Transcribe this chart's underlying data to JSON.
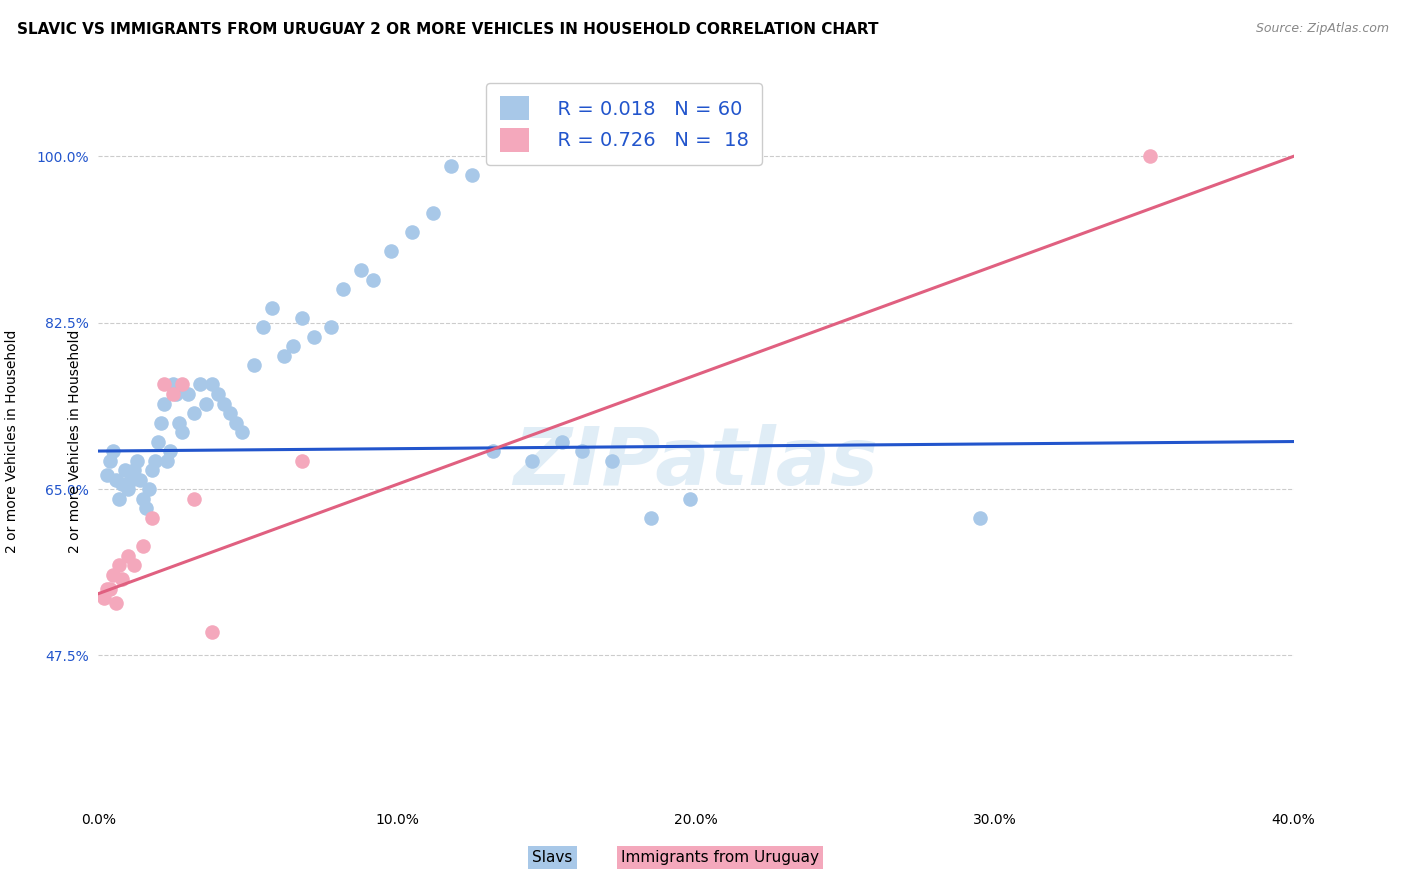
{
  "title": "SLAVIC VS IMMIGRANTS FROM URUGUAY 2 OR MORE VEHICLES IN HOUSEHOLD CORRELATION CHART",
  "source": "Source: ZipAtlas.com",
  "ylabel_label": "2 or more Vehicles in Household",
  "xlabel_label_slavs": "Slavs",
  "xlabel_label_immigrants": "Immigrants from Uruguay",
  "xmin": 0.0,
  "xmax": 0.4,
  "ymin": 0.32,
  "ymax": 1.08,
  "legend_r1": "R = 0.018",
  "legend_n1": "N = 60",
  "legend_r2": "R = 0.726",
  "legend_n2": "N =  18",
  "slavs_color": "#a8c8e8",
  "immigrants_color": "#f4a8bc",
  "slavs_line_color": "#2255cc",
  "immigrants_line_color": "#e06080",
  "background_color": "#ffffff",
  "grid_color": "#cccccc",
  "title_fontsize": 11,
  "axis_label_color_right": "#2255cc",
  "watermark": "ZIPatlas",
  "slavs_x": [
    0.003,
    0.004,
    0.005,
    0.006,
    0.007,
    0.008,
    0.009,
    0.01,
    0.011,
    0.012,
    0.013,
    0.014,
    0.015,
    0.016,
    0.017,
    0.018,
    0.019,
    0.02,
    0.021,
    0.022,
    0.023,
    0.024,
    0.025,
    0.026,
    0.027,
    0.028,
    0.03,
    0.032,
    0.034,
    0.036,
    0.038,
    0.04,
    0.042,
    0.044,
    0.046,
    0.048,
    0.052,
    0.055,
    0.058,
    0.062,
    0.065,
    0.068,
    0.072,
    0.078,
    0.082,
    0.088,
    0.092,
    0.098,
    0.105,
    0.112,
    0.118,
    0.125,
    0.132,
    0.145,
    0.155,
    0.162,
    0.172,
    0.185,
    0.198,
    0.295
  ],
  "slavs_y": [
    0.665,
    0.68,
    0.69,
    0.66,
    0.64,
    0.655,
    0.67,
    0.65,
    0.66,
    0.67,
    0.68,
    0.66,
    0.64,
    0.63,
    0.65,
    0.67,
    0.68,
    0.7,
    0.72,
    0.74,
    0.68,
    0.69,
    0.76,
    0.75,
    0.72,
    0.71,
    0.75,
    0.73,
    0.76,
    0.74,
    0.76,
    0.75,
    0.74,
    0.73,
    0.72,
    0.71,
    0.78,
    0.82,
    0.84,
    0.79,
    0.8,
    0.83,
    0.81,
    0.82,
    0.86,
    0.88,
    0.87,
    0.9,
    0.92,
    0.94,
    0.99,
    0.98,
    0.69,
    0.68,
    0.7,
    0.69,
    0.68,
    0.62,
    0.64,
    0.62
  ],
  "immigrants_x": [
    0.002,
    0.003,
    0.004,
    0.005,
    0.006,
    0.007,
    0.008,
    0.01,
    0.012,
    0.015,
    0.018,
    0.022,
    0.025,
    0.028,
    0.032,
    0.038,
    0.068,
    0.352
  ],
  "immigrants_y": [
    0.535,
    0.545,
    0.545,
    0.56,
    0.53,
    0.57,
    0.555,
    0.58,
    0.57,
    0.59,
    0.62,
    0.76,
    0.75,
    0.76,
    0.64,
    0.5,
    0.68,
    1.0
  ],
  "slavs_line_y0": 0.69,
  "slavs_line_y1": 0.7,
  "immigrants_line_y0": 0.54,
  "immigrants_line_y1": 1.0
}
